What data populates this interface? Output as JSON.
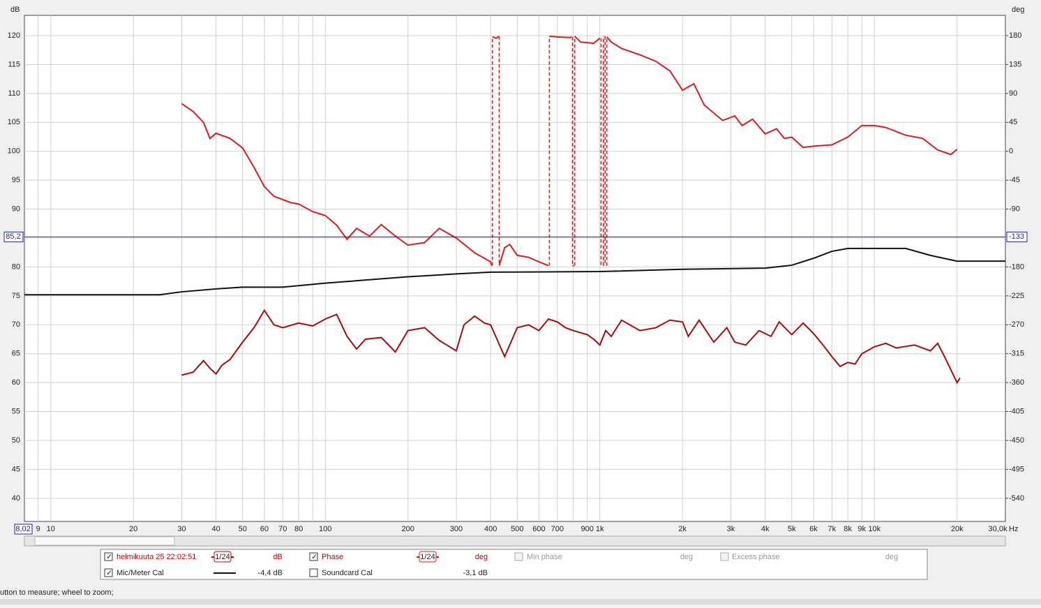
{
  "chart_data": {
    "type": "line",
    "y_unit": "dB",
    "y2_unit": "deg",
    "x_unit": "Hz",
    "xlim": [
      8.02,
      30000
    ],
    "xlim_labels": [
      "8,02",
      "30,0k"
    ],
    "log_x": true,
    "grid": true,
    "ylim": [
      36,
      123.5
    ],
    "yticks": [
      40,
      45,
      50,
      55,
      60,
      65,
      70,
      75,
      80,
      85,
      90,
      95,
      100,
      105,
      110,
      115,
      120
    ],
    "y2lim": [
      -576,
      211.5
    ],
    "y2ticks": [
      180,
      135,
      90,
      45,
      0,
      -45,
      -90,
      -180,
      -225,
      -270,
      -315,
      -360,
      -405,
      -450,
      -495,
      -540
    ],
    "xticks": [
      9,
      10,
      20,
      30,
      40,
      50,
      60,
      70,
      80,
      {
        "value": 90,
        "label": null
      },
      100,
      200,
      300,
      400,
      500,
      600,
      700,
      {
        "value": 800,
        "label": null
      },
      900,
      {
        "value": 1000,
        "label": "1k"
      },
      {
        "value": 2000,
        "label": "2k"
      },
      {
        "value": 3000,
        "label": "3k"
      },
      {
        "value": 4000,
        "label": "4k"
      },
      {
        "value": 5000,
        "label": "5k"
      },
      {
        "value": 6000,
        "label": "6k"
      },
      {
        "value": 7000,
        "label": "7k"
      },
      {
        "value": 8000,
        "label": "8k"
      },
      {
        "value": 9000,
        "label": "9k"
      },
      {
        "value": 10000,
        "label": "10k"
      },
      {
        "value": 20000,
        "label": "20k"
      }
    ],
    "cursor": {
      "value": 85.2,
      "label": "85,2",
      "y2_label": "-133",
      "color": "#1f1fa8"
    },
    "series": [
      {
        "name": "helmikuuta 25 22:02:51",
        "color": "#a80a0a",
        "x": [
          30,
          33,
          36,
          38,
          40,
          42,
          45,
          50,
          55,
          60,
          65,
          70,
          80,
          90,
          100,
          110,
          120,
          130,
          140,
          160,
          180,
          200,
          230,
          260,
          300,
          320,
          350,
          380,
          400,
          450,
          500,
          550,
          600,
          650,
          700,
          750,
          800,
          900,
          950,
          1000,
          1050,
          1100,
          1200,
          1400,
          1600,
          1800,
          2000,
          2100,
          2300,
          2600,
          2900,
          3100,
          3400,
          3800,
          4200,
          4500,
          5000,
          5500,
          6000,
          6500,
          7000,
          7500,
          8000,
          8500,
          9000,
          10000,
          11000,
          12000,
          14000,
          16000,
          17000,
          18000,
          20000,
          20500
        ],
        "values": [
          61.3,
          61.8,
          63.8,
          62.5,
          61.5,
          63,
          64,
          67,
          69.5,
          72.5,
          70,
          69.5,
          70.3,
          69.8,
          71,
          71.8,
          68,
          65.8,
          67.5,
          67.8,
          65.3,
          69,
          69.5,
          67.3,
          65.5,
          70,
          71.5,
          70.3,
          70,
          64.5,
          69.5,
          70,
          69,
          71,
          70.5,
          69.5,
          69,
          68.3,
          67.5,
          66.5,
          69,
          68,
          70.8,
          69,
          69.5,
          70.8,
          70.5,
          68,
          70.8,
          67,
          69.5,
          67,
          66.5,
          69,
          68,
          70.5,
          68.3,
          70.3,
          68.5,
          66.5,
          64.5,
          62.8,
          63.5,
          63.2,
          65,
          66.2,
          66.8,
          66,
          66.5,
          65.5,
          66.8,
          64.5,
          60,
          60.8
        ]
      },
      {
        "name": "Phase",
        "color": "#e01a1a",
        "axis": "y2",
        "x": [
          30,
          33,
          36,
          38,
          40,
          45,
          50,
          55,
          60,
          65,
          75,
          80,
          90,
          100,
          110,
          120,
          130,
          145,
          160,
          180,
          200,
          230,
          260,
          300,
          350,
          400,
          404,
          406,
          420,
          428,
          430,
          450,
          470,
          500,
          550,
          600,
          650,
          655,
          700,
          780,
          790,
          795,
          805,
          810,
          850,
          950,
          1000,
          1010,
          1030,
          1045,
          1060,
          1100,
          1200,
          1400,
          1600,
          1800,
          2000,
          2200,
          2400,
          2800,
          3100,
          3300,
          3600,
          4000,
          4400,
          4700,
          5000,
          5500,
          6000,
          7000,
          8000,
          9000,
          10000,
          11000,
          13000,
          15000,
          17000,
          19000,
          20000
        ],
        "values": [
          74,
          62,
          45,
          20,
          28,
          20,
          5,
          -25,
          -55,
          -70,
          -80,
          -82,
          -94,
          -100,
          -115,
          -137,
          -120,
          -132,
          -114,
          -132,
          -146,
          -142,
          -120,
          -135,
          -158,
          -172,
          -178,
          178,
          176,
          179,
          -178,
          -150,
          -145,
          -162,
          -165,
          -172,
          -178,
          179,
          178,
          177,
          178,
          -178,
          -178,
          179,
          170,
          168,
          176,
          -178,
          179,
          -178,
          178,
          170,
          160,
          150,
          140,
          125,
          95,
          105,
          72,
          48,
          55,
          40,
          50,
          27,
          35,
          20,
          22,
          6,
          8,
          10,
          22,
          40,
          40,
          37,
          25,
          20,
          2,
          -5,
          3
        ]
      },
      {
        "name": "Mic/Meter Cal",
        "color": "#111111",
        "x": [
          8.02,
          25,
          30,
          40,
          50,
          70,
          100,
          200,
          300,
          400,
          1000,
          2000,
          4000,
          5000,
          6000,
          7000,
          8000,
          13000,
          16000,
          20000,
          24000,
          30000
        ],
        "values": [
          75.2,
          75.2,
          75.7,
          76.2,
          76.5,
          76.5,
          77.2,
          78.3,
          78.8,
          79.1,
          79.2,
          79.6,
          79.8,
          80.3,
          81.5,
          82.7,
          83.2,
          83.2,
          82,
          81,
          81,
          81
        ]
      }
    ]
  },
  "ui": {
    "legend": {
      "smoothing_1": "1/24",
      "unit_1": "dB",
      "smoothing_2": "1/24",
      "unit_2": "deg",
      "min_phase": "Min phase",
      "unit_3": "deg",
      "excess_phase": "Excess phase",
      "unit_4": "deg",
      "cal_offset": "-4,4 dB",
      "soundcard": "Soundcard Cal",
      "soundcard_offset": "-3,1 dB"
    },
    "status": "utton to measure; wheel to zoom;"
  }
}
